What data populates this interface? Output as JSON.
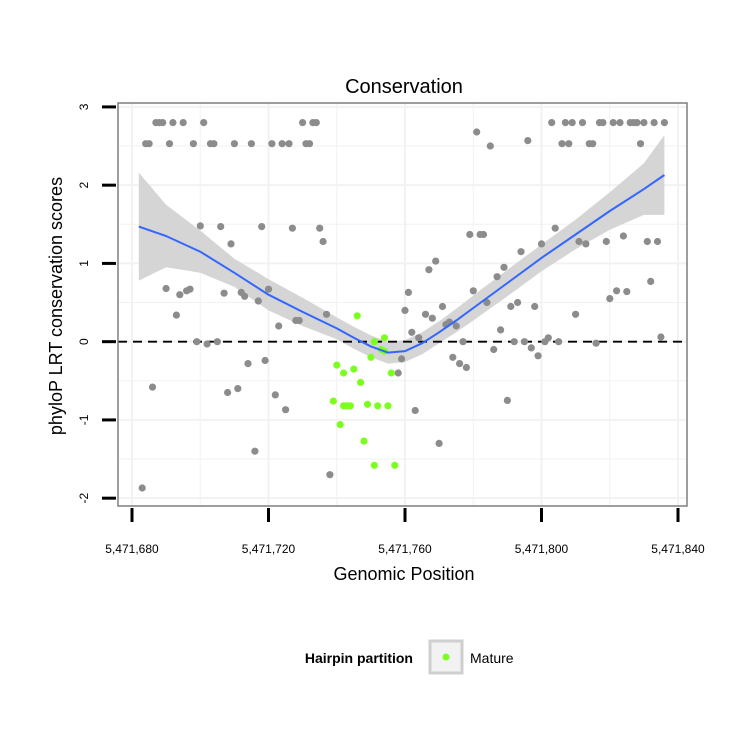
{
  "chart_data": {
    "type": "scatter",
    "title": "Conservation",
    "xlabel": "Genomic Position",
    "ylabel": "phyloP LRT conservation scores",
    "xlim": [
      5471680,
      5471840
    ],
    "ylim": [
      -2.1,
      3.05
    ],
    "x_ticks": [
      5471680,
      5471720,
      5471760,
      5471800,
      5471840
    ],
    "x_tick_labels": [
      "5,471,680",
      "5,471,720",
      "5,471,760",
      "5,471,800",
      "5,471,840"
    ],
    "y_ticks": [
      -2,
      -1,
      0,
      1,
      2,
      3
    ],
    "y_tick_labels": [
      "-2",
      "-1",
      "0",
      "1",
      "2",
      "3"
    ],
    "reference_line_y": 0,
    "grid": true,
    "colors": {
      "other": "#8c8c8c",
      "mature": "#7cff1e",
      "smooth": "#3366ff",
      "band": "#d3d3d3",
      "grid": "#f2f2f2",
      "frame": "#7f7f7f"
    },
    "legend": {
      "title": "Hairpin partition",
      "position": "bottom",
      "entries": [
        "Mature"
      ]
    },
    "series": [
      {
        "name": "Other",
        "points": [
          [
            5471683,
            -1.87
          ],
          [
            5471684,
            2.53
          ],
          [
            5471685,
            2.53
          ],
          [
            5471686,
            -0.58
          ],
          [
            5471687,
            2.8
          ],
          [
            5471688,
            2.8
          ],
          [
            5471689,
            2.8
          ],
          [
            5471690,
            0.68
          ],
          [
            5471691,
            2.53
          ],
          [
            5471692,
            2.8
          ],
          [
            5471693,
            0.34
          ],
          [
            5471694,
            0.6
          ],
          [
            5471695,
            2.8
          ],
          [
            5471696,
            0.65
          ],
          [
            5471697,
            0.67
          ],
          [
            5471698,
            2.53
          ],
          [
            5471699,
            0.0
          ],
          [
            5471700,
            1.48
          ],
          [
            5471701,
            2.8
          ],
          [
            5471702,
            -0.03
          ],
          [
            5471703,
            2.53
          ],
          [
            5471704,
            2.53
          ],
          [
            5471705,
            0.0
          ],
          [
            5471706,
            1.47
          ],
          [
            5471707,
            0.62
          ],
          [
            5471708,
            -0.65
          ],
          [
            5471709,
            1.25
          ],
          [
            5471710,
            2.53
          ],
          [
            5471711,
            -0.6
          ],
          [
            5471712,
            0.63
          ],
          [
            5471713,
            0.58
          ],
          [
            5471714,
            -0.28
          ],
          [
            5471715,
            2.53
          ],
          [
            5471716,
            -1.4
          ],
          [
            5471717,
            0.52
          ],
          [
            5471718,
            1.47
          ],
          [
            5471719,
            -0.24
          ],
          [
            5471720,
            0.67
          ],
          [
            5471721,
            2.53
          ],
          [
            5471722,
            -0.68
          ],
          [
            5471723,
            0.2
          ],
          [
            5471724,
            2.53
          ],
          [
            5471725,
            -0.87
          ],
          [
            5471726,
            2.53
          ],
          [
            5471727,
            1.45
          ],
          [
            5471728,
            0.27
          ],
          [
            5471729,
            0.27
          ],
          [
            5471730,
            2.8
          ],
          [
            5471731,
            2.53
          ],
          [
            5471732,
            2.53
          ],
          [
            5471733,
            2.8
          ],
          [
            5471734,
            2.8
          ],
          [
            5471735,
            1.45
          ],
          [
            5471736,
            1.28
          ],
          [
            5471737,
            0.35
          ],
          [
            5471738,
            -1.7
          ],
          [
            5471758,
            -0.4
          ],
          [
            5471759,
            -0.22
          ],
          [
            5471760,
            0.4
          ],
          [
            5471761,
            0.63
          ],
          [
            5471762,
            0.12
          ],
          [
            5471763,
            -0.88
          ],
          [
            5471764,
            0.05
          ],
          [
            5471766,
            0.35
          ],
          [
            5471767,
            0.92
          ],
          [
            5471768,
            0.3
          ],
          [
            5471769,
            1.03
          ],
          [
            5471770,
            -1.3
          ],
          [
            5471771,
            0.45
          ],
          [
            5471772,
            0.22
          ],
          [
            5471773,
            0.25
          ],
          [
            5471774,
            -0.2
          ],
          [
            5471775,
            0.2
          ],
          [
            5471776,
            -0.28
          ],
          [
            5471777,
            0.0
          ],
          [
            5471778,
            -0.33
          ],
          [
            5471779,
            1.37
          ],
          [
            5471780,
            0.65
          ],
          [
            5471781,
            2.68
          ],
          [
            5471782,
            1.37
          ],
          [
            5471783,
            1.37
          ],
          [
            5471784,
            0.5
          ],
          [
            5471785,
            2.5
          ],
          [
            5471786,
            -0.1
          ],
          [
            5471787,
            0.83
          ],
          [
            5471788,
            0.15
          ],
          [
            5471789,
            0.95
          ],
          [
            5471790,
            -0.75
          ],
          [
            5471791,
            0.45
          ],
          [
            5471792,
            0.0
          ],
          [
            5471793,
            0.5
          ],
          [
            5471794,
            1.15
          ],
          [
            5471795,
            0.0
          ],
          [
            5471796,
            2.57
          ],
          [
            5471797,
            -0.08
          ],
          [
            5471798,
            0.45
          ],
          [
            5471799,
            -0.18
          ],
          [
            5471800,
            1.25
          ],
          [
            5471801,
            0.0
          ],
          [
            5471802,
            0.05
          ],
          [
            5471803,
            2.8
          ],
          [
            5471804,
            1.45
          ],
          [
            5471805,
            0.0
          ],
          [
            5471806,
            2.53
          ],
          [
            5471807,
            2.8
          ],
          [
            5471808,
            2.53
          ],
          [
            5471809,
            2.8
          ],
          [
            5471810,
            0.35
          ],
          [
            5471811,
            1.28
          ],
          [
            5471812,
            2.8
          ],
          [
            5471813,
            1.25
          ],
          [
            5471814,
            2.53
          ],
          [
            5471815,
            2.53
          ],
          [
            5471816,
            -0.02
          ],
          [
            5471817,
            2.8
          ],
          [
            5471818,
            2.8
          ],
          [
            5471819,
            1.28
          ],
          [
            5471820,
            0.55
          ],
          [
            5471821,
            2.8
          ],
          [
            5471822,
            0.65
          ],
          [
            5471823,
            2.8
          ],
          [
            5471824,
            1.35
          ],
          [
            5471825,
            0.64
          ],
          [
            5471826,
            2.8
          ],
          [
            5471827,
            2.8
          ],
          [
            5471828,
            2.8
          ],
          [
            5471829,
            2.53
          ],
          [
            5471830,
            2.8
          ],
          [
            5471831,
            1.28
          ],
          [
            5471832,
            0.77
          ],
          [
            5471833,
            2.8
          ],
          [
            5471834,
            1.28
          ],
          [
            5471835,
            0.06
          ],
          [
            5471836,
            2.8
          ]
        ]
      },
      {
        "name": "Mature",
        "points": [
          [
            5471739,
            -0.76
          ],
          [
            5471740,
            -0.3
          ],
          [
            5471741,
            -1.06
          ],
          [
            5471742,
            -0.4
          ],
          [
            5471742,
            -0.82
          ],
          [
            5471743,
            -0.82
          ],
          [
            5471744,
            -0.82
          ],
          [
            5471745,
            -0.35
          ],
          [
            5471746,
            0.33
          ],
          [
            5471747,
            -0.52
          ],
          [
            5471748,
            -1.27
          ],
          [
            5471749,
            -0.8
          ],
          [
            5471750,
            -0.2
          ],
          [
            5471751,
            0.0
          ],
          [
            5471751,
            -1.58
          ],
          [
            5471752,
            -0.82
          ],
          [
            5471753,
            -0.1
          ],
          [
            5471754,
            0.05
          ],
          [
            5471754,
            -0.12
          ],
          [
            5471755,
            -0.82
          ],
          [
            5471756,
            -0.4
          ],
          [
            5471757,
            -1.58
          ]
        ]
      }
    ],
    "smooth": {
      "x": [
        5471682,
        5471690,
        5471700,
        5471710,
        5471720,
        5471730,
        5471740,
        5471745,
        5471750,
        5471755,
        5471760,
        5471765,
        5471770,
        5471775,
        5471780,
        5471790,
        5471800,
        5471810,
        5471820,
        5471830,
        5471836
      ],
      "y": [
        1.47,
        1.35,
        1.15,
        0.88,
        0.6,
        0.38,
        0.17,
        0.05,
        -0.06,
        -0.14,
        -0.12,
        -0.02,
        0.12,
        0.27,
        0.43,
        0.75,
        1.07,
        1.37,
        1.67,
        1.95,
        2.13
      ],
      "lower": [
        0.78,
        0.95,
        0.88,
        0.7,
        0.4,
        0.2,
        0.03,
        -0.09,
        -0.2,
        -0.28,
        -0.26,
        -0.16,
        -0.02,
        0.12,
        0.27,
        0.58,
        0.9,
        1.18,
        1.43,
        1.62,
        1.62
      ],
      "upper": [
        2.16,
        1.75,
        1.42,
        1.06,
        0.8,
        0.56,
        0.31,
        0.19,
        0.08,
        0.0,
        0.02,
        0.12,
        0.26,
        0.42,
        0.59,
        0.92,
        1.24,
        1.56,
        1.91,
        2.28,
        2.64
      ]
    }
  }
}
